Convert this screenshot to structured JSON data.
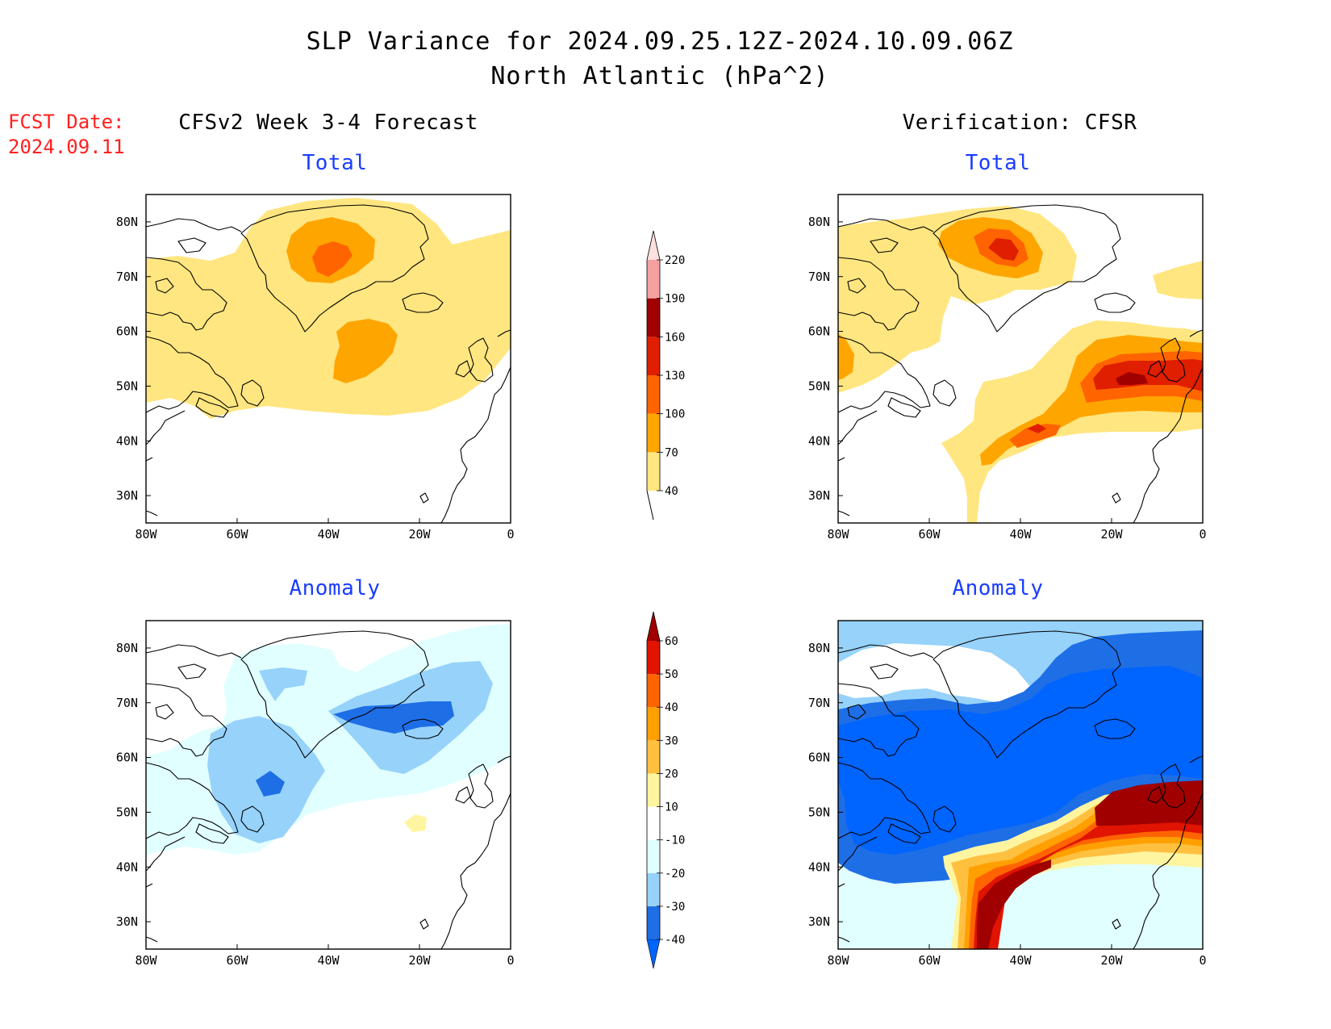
{
  "header": {
    "title_line1": "SLP Variance for 2024.09.25.12Z-2024.10.09.06Z",
    "title_line2": "North Atlantic (hPa^2)"
  },
  "forecast_date": {
    "label": "FCST Date:",
    "value": "2024.09.11"
  },
  "columns": {
    "left": "CFSv2 Week 3-4 Forecast",
    "right": "Verification: CFSR"
  },
  "axes": {
    "lon_ticks": [
      "80W",
      "60W",
      "40W",
      "20W",
      "0"
    ],
    "lat_ticks": [
      "30N",
      "40N",
      "50N",
      "60N",
      "70N",
      "80N"
    ]
  },
  "panels": {
    "fcst_total": {
      "title": "Total"
    },
    "verif_total": {
      "title": "Total"
    },
    "fcst_anomaly": {
      "title": "Anomaly"
    },
    "verif_anomaly": {
      "title": "Anomaly"
    }
  },
  "colorbars": {
    "total": {
      "labels": [
        "40",
        "70",
        "100",
        "130",
        "160",
        "190",
        "220"
      ],
      "colors": [
        "#ffe680",
        "#ffa500",
        "#ff6400",
        "#e01e00",
        "#a00000",
        "#f5a0a0",
        "#fde0e0"
      ]
    },
    "anomaly": {
      "labels": [
        "-40",
        "-30",
        "-20",
        "-10",
        "10",
        "20",
        "30",
        "40",
        "50",
        "60"
      ],
      "colors": [
        "#0064ff",
        "#1e6ee6",
        "#96d2fa",
        "#e1ffff",
        "#ffffff",
        "#fff5a0",
        "#ffc040",
        "#ffa000",
        "#ff6400",
        "#e01400",
        "#a00000"
      ]
    }
  }
}
